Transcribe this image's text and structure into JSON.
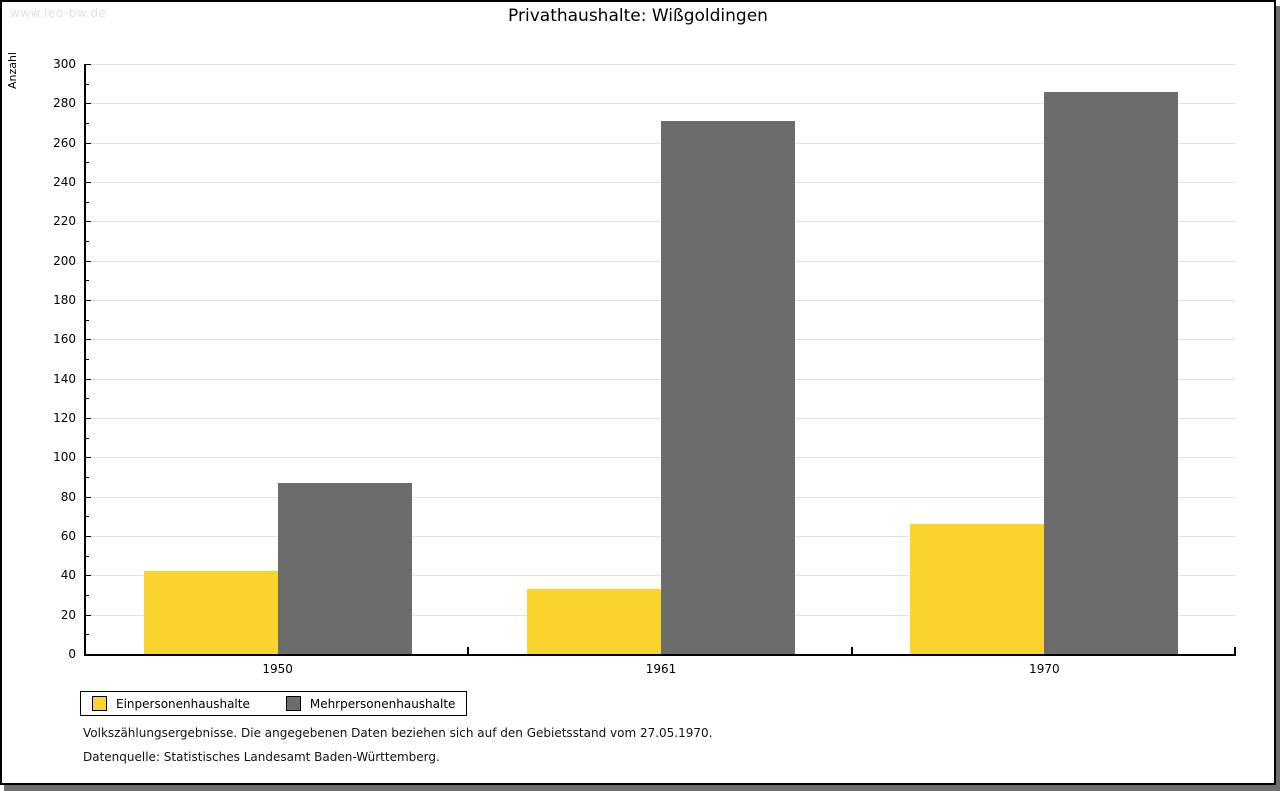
{
  "watermark": "www.leo-bw.de",
  "chart_data": {
    "type": "bar",
    "title": "Privathaushalte: Wißgoldingen",
    "ylabel": "Anzahl",
    "xlabel": "",
    "categories": [
      "1950",
      "1961",
      "1970"
    ],
    "series": [
      {
        "name": "Einpersonenhaushalte",
        "color": "#fbd32d",
        "values": [
          42,
          33,
          66
        ]
      },
      {
        "name": "Mehrpersonenhaushalte",
        "color": "#6c6c6c",
        "values": [
          87,
          271,
          286
        ]
      }
    ],
    "ylim": [
      0,
      300
    ],
    "y_tick_step": 20,
    "y_minor_tick_step": 10,
    "grid": "horizontal-major-gridlines",
    "gridline_color": "#e3e3e3",
    "legend_position": "bottom-left"
  },
  "notes": [
    "Volkszählungsergebnisse. Die angegebenen Daten beziehen sich auf den Gebietsstand vom 27.05.1970.",
    "Datenquelle: Statistisches Landesamt Baden-Württemberg."
  ]
}
